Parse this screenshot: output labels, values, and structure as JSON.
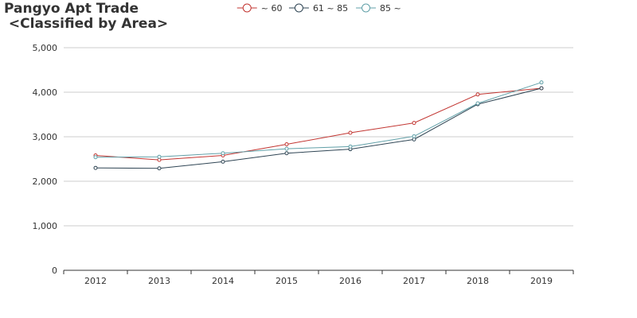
{
  "title": {
    "line1": "Pangyo Apt Trade",
    "line2": " <Classified by Area>"
  },
  "chart_data": {
    "type": "line",
    "categories": [
      "2012",
      "2013",
      "2014",
      "2015",
      "2016",
      "2017",
      "2018",
      "2019"
    ],
    "ylim": [
      0,
      5000
    ],
    "yticks": [
      0,
      1000,
      2000,
      3000,
      4000,
      5000
    ],
    "ytick_labels": [
      "0",
      "1,000",
      "2,000",
      "3,000",
      "4,000",
      "5,000"
    ],
    "grid": true,
    "legend_position": "top-center",
    "series": [
      {
        "name": "~ 60",
        "color": "#c23531",
        "values": [
          2580,
          2480,
          2580,
          2830,
          3090,
          3310,
          3950,
          4090
        ]
      },
      {
        "name": "61 ~ 85",
        "color": "#2f4554",
        "values": [
          2300,
          2290,
          2440,
          2630,
          2720,
          2940,
          3730,
          4090
        ]
      },
      {
        "name": "85 ~",
        "color": "#61a0a8",
        "values": [
          2540,
          2550,
          2630,
          2730,
          2780,
          3010,
          3750,
          4220
        ]
      }
    ]
  }
}
